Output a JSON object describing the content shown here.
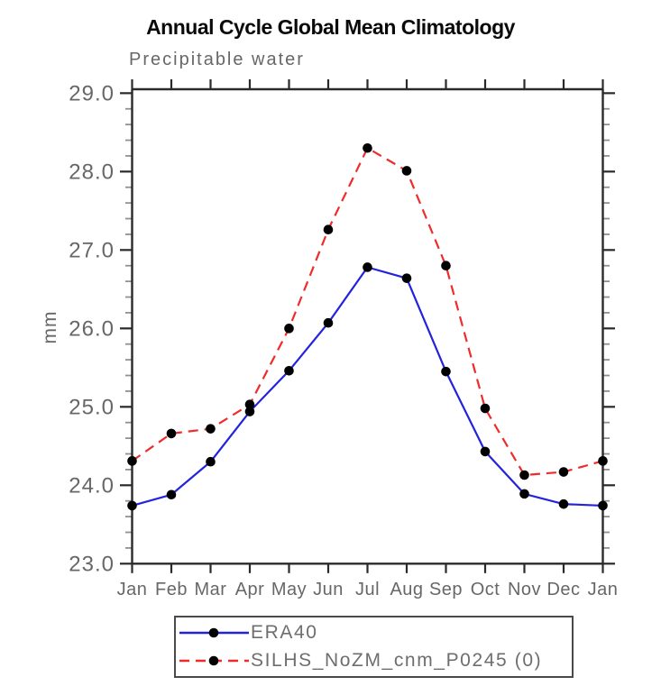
{
  "header": {
    "title": "Annual Cycle Global Mean Climatology"
  },
  "chart_data": {
    "type": "line",
    "title": "Annual Cycle Global Mean Climatology",
    "subtitle": "Precipitable water",
    "ylabel": "mm",
    "xlabel": "",
    "categories": [
      "Jan",
      "Feb",
      "Mar",
      "Apr",
      "May",
      "Jun",
      "Jul",
      "Aug",
      "Sep",
      "Oct",
      "Nov",
      "Dec",
      "Jan"
    ],
    "series": [
      {
        "name": "ERA40",
        "color": "#2323dd",
        "line_style": "solid",
        "marker": "filled-circle",
        "marker_color": "#000000",
        "values": [
          23.74,
          23.88,
          24.3,
          24.94,
          25.46,
          26.07,
          26.78,
          26.64,
          25.45,
          24.43,
          23.89,
          23.76,
          23.74
        ]
      },
      {
        "name": "SILHS_NoZM_cnm_P0245 (0)",
        "color": "#ee2c2c",
        "line_style": "dashed",
        "marker": "filled-circle",
        "marker_color": "#000000",
        "values": [
          24.31,
          24.66,
          24.72,
          25.03,
          26.0,
          27.26,
          28.3,
          28.01,
          26.8,
          24.98,
          24.13,
          24.17,
          24.31
        ]
      }
    ],
    "ylim": [
      23.0,
      29.05
    ],
    "yticks_major": [
      23.0,
      24.0,
      25.0,
      26.0,
      27.0,
      28.0,
      29.0
    ],
    "ytick_labels": [
      "23.0",
      "24.0",
      "25.0",
      "26.0",
      "27.0",
      "28.0",
      "29.0"
    ],
    "ytick_minor_step": 0.2,
    "grid": false,
    "legend_position": "bottom"
  },
  "legend": {
    "items": [
      {
        "label": "ERA40"
      },
      {
        "label": "SILHS_NoZM_cnm_P0245 (0)"
      }
    ]
  },
  "colors": {
    "era40_blue": "#2323dd",
    "silhs_red": "#ee2c2c",
    "marker_black": "#000000",
    "axis_dark": "#2a2a2a",
    "minor_tick_gray": "#909090",
    "label_gray": "#676767",
    "title_black": "#0a0a0a"
  }
}
